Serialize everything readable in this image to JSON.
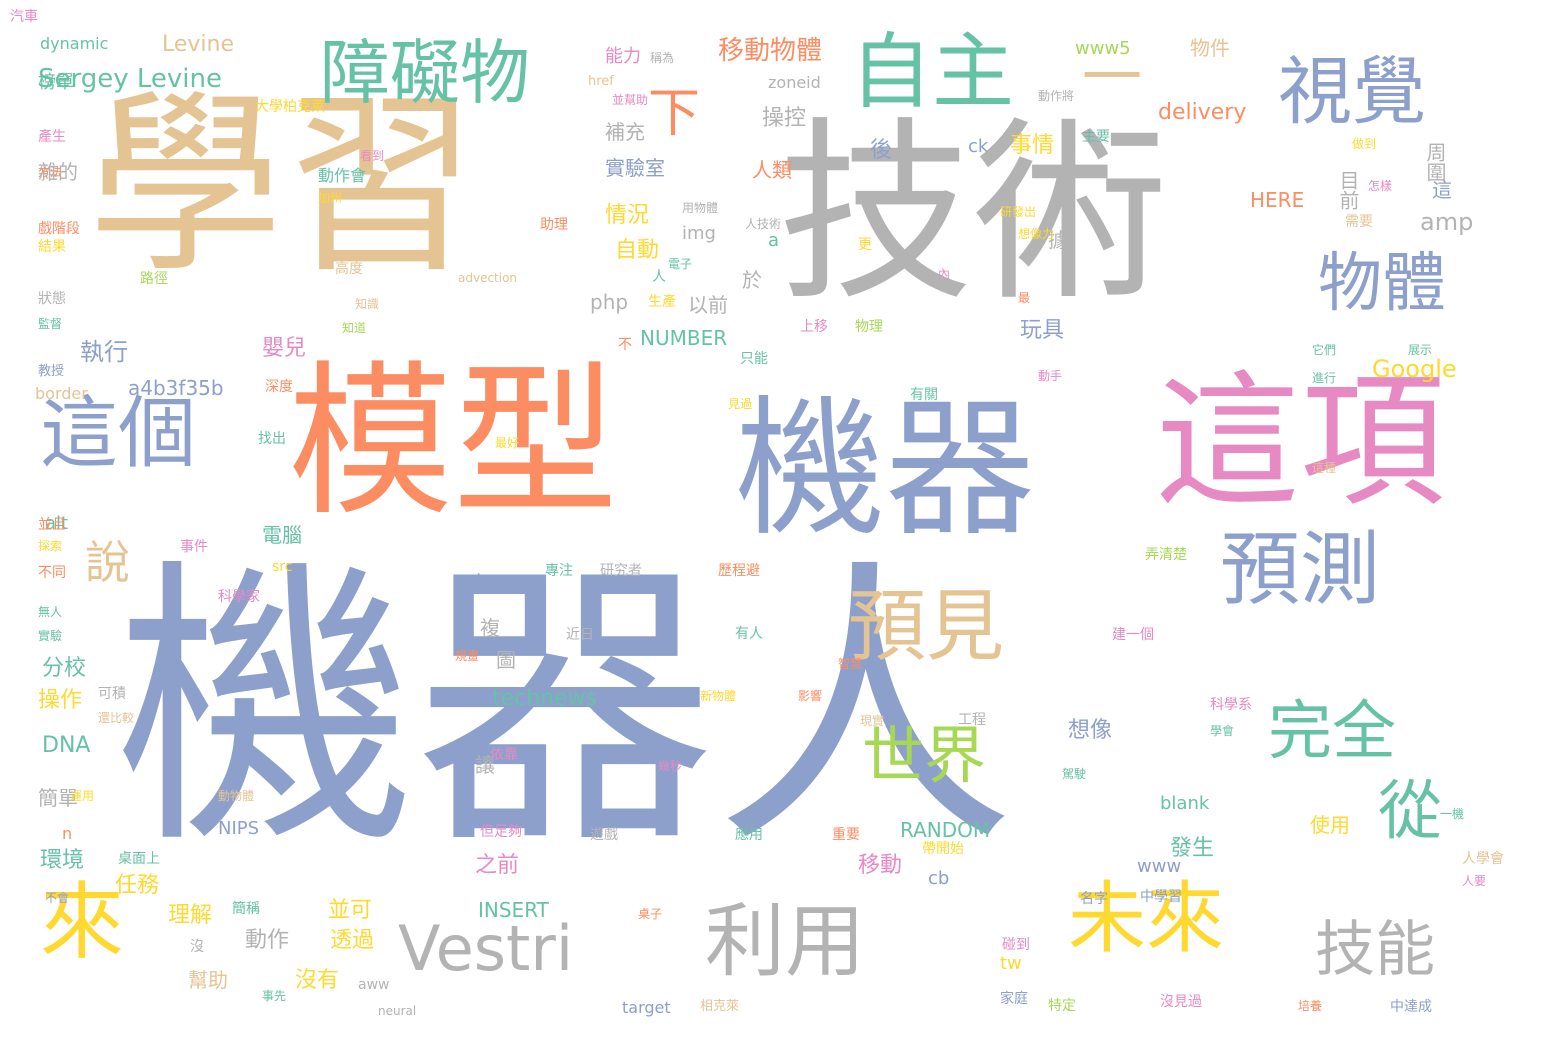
{
  "palette": {
    "blue": "#8da0cb",
    "tan": "#e5c494",
    "grey": "#b3b3b3",
    "orange": "#fc8d62",
    "pink": "#e78ac3",
    "teal": "#66c2a5",
    "yellow": "#ffd92f",
    "green": "#a6d854"
  },
  "words": [
    {
      "text": "機器人",
      "color": "blue",
      "size": "xxl"
    },
    {
      "text": "技術",
      "color": "grey",
      "size": "xl"
    },
    {
      "text": "學習",
      "color": "tan",
      "size": "xl"
    },
    {
      "text": "模型",
      "color": "orange",
      "size": "l"
    },
    {
      "text": "機器",
      "color": "blue",
      "size": "l"
    },
    {
      "text": "這項",
      "color": "pink",
      "size": "l"
    },
    {
      "text": "自主",
      "color": "teal",
      "size": "m"
    },
    {
      "text": "一",
      "color": "tan",
      "size": "m"
    },
    {
      "text": "視覺",
      "color": "blue",
      "size": "m"
    },
    {
      "text": "障礙物",
      "color": "teal",
      "size": "m"
    },
    {
      "text": "物體",
      "color": "blue",
      "size": "m"
    },
    {
      "text": "這個",
      "color": "blue",
      "size": "m"
    },
    {
      "text": "預見",
      "color": "tan",
      "size": "m"
    },
    {
      "text": "預測",
      "color": "blue",
      "size": "m"
    },
    {
      "text": "完全",
      "color": "teal",
      "size": "m"
    },
    {
      "text": "世界",
      "color": "green",
      "size": "m"
    },
    {
      "text": "來",
      "color": "yellow",
      "size": "m"
    },
    {
      "text": "Vestri",
      "color": "grey",
      "size": "m"
    },
    {
      "text": "利用",
      "color": "grey",
      "size": "m"
    },
    {
      "text": "未來",
      "color": "yellow",
      "size": "m"
    },
    {
      "text": "技能",
      "color": "grey",
      "size": "m"
    },
    {
      "text": "從",
      "color": "teal",
      "size": "m"
    },
    {
      "text": "說",
      "color": "tan",
      "size": "s"
    },
    {
      "text": "下",
      "color": "orange",
      "size": "s"
    },
    {
      "text": "Sergey Levine",
      "color": "teal",
      "size": "s"
    },
    {
      "text": "Levine",
      "color": "tan",
      "size": "s"
    },
    {
      "text": "移動物體",
      "color": "orange",
      "size": "s"
    },
    {
      "text": "執行",
      "color": "blue",
      "size": "s"
    },
    {
      "text": "a4b3f35b",
      "color": "blue",
      "size": "s"
    },
    {
      "text": "電腦",
      "color": "teal",
      "size": "s"
    },
    {
      "text": "分校",
      "color": "teal",
      "size": "s"
    },
    {
      "text": "操作",
      "color": "yellow",
      "size": "s"
    },
    {
      "text": "DNA",
      "color": "teal",
      "size": "s"
    },
    {
      "text": "環境",
      "color": "teal",
      "size": "s"
    },
    {
      "text": "任務",
      "color": "yellow",
      "size": "s"
    },
    {
      "text": "理解",
      "color": "yellow",
      "size": "s"
    },
    {
      "text": "動作",
      "color": "grey",
      "size": "s"
    },
    {
      "text": "透過",
      "color": "yellow",
      "size": "s"
    },
    {
      "text": "沒有",
      "color": "yellow",
      "size": "s"
    },
    {
      "text": "並可",
      "color": "yellow",
      "size": "s"
    },
    {
      "text": "technews",
      "color": "teal",
      "size": "s"
    },
    {
      "text": "INSERT",
      "color": "teal",
      "size": "s"
    },
    {
      "text": "RANDOM",
      "color": "teal",
      "size": "s"
    },
    {
      "text": "NUMBER",
      "color": "teal",
      "size": "s"
    },
    {
      "text": "Google",
      "color": "yellow",
      "size": "s"
    },
    {
      "text": "delivery",
      "color": "orange",
      "size": "s"
    },
    {
      "text": "HERE",
      "color": "orange",
      "size": "s"
    },
    {
      "text": "amp",
      "color": "grey",
      "size": "s"
    },
    {
      "text": "www5",
      "color": "green",
      "size": "s"
    },
    {
      "text": "物件",
      "color": "tan",
      "size": "s"
    },
    {
      "text": "能力",
      "color": "pink",
      "size": "s"
    },
    {
      "text": "操控",
      "color": "grey",
      "size": "s"
    },
    {
      "text": "事情",
      "color": "yellow",
      "size": "s"
    },
    {
      "text": "人類",
      "color": "orange",
      "size": "s"
    },
    {
      "text": "實驗室",
      "color": "blue",
      "size": "s"
    },
    {
      "text": "補充",
      "color": "grey",
      "size": "s"
    },
    {
      "text": "情況",
      "color": "yellow",
      "size": "s"
    },
    {
      "text": "自動",
      "color": "yellow",
      "size": "s"
    },
    {
      "text": "以前",
      "color": "grey",
      "size": "s"
    },
    {
      "text": "目前",
      "color": "grey",
      "size": "s"
    },
    {
      "text": "周圍",
      "color": "grey",
      "size": "s"
    },
    {
      "text": "玩具",
      "color": "blue",
      "size": "s"
    },
    {
      "text": "嬰兒",
      "color": "pink",
      "size": "s"
    },
    {
      "text": "了解",
      "color": "blue",
      "size": "s"
    },
    {
      "text": "想像",
      "color": "blue",
      "size": "s"
    },
    {
      "text": "發生",
      "color": "teal",
      "size": "s"
    },
    {
      "text": "使用",
      "color": "yellow",
      "size": "s"
    },
    {
      "text": "移動",
      "color": "pink",
      "size": "s"
    },
    {
      "text": "之前",
      "color": "pink",
      "size": "s"
    },
    {
      "text": "後",
      "color": "blue",
      "size": "s"
    },
    {
      "text": "據",
      "color": "grey",
      "size": "s"
    },
    {
      "text": "於",
      "color": "grey",
      "size": "s"
    },
    {
      "text": "讓",
      "color": "grey",
      "size": "s"
    },
    {
      "text": "複",
      "color": "grey",
      "size": "s"
    },
    {
      "text": "圖",
      "color": "grey",
      "size": "s"
    },
    {
      "text": "這",
      "color": "blue",
      "size": "s"
    },
    {
      "text": "雜的",
      "color": "grey",
      "size": "s"
    },
    {
      "text": "榜單",
      "color": "teal",
      "size": "s"
    },
    {
      "text": "簡單",
      "color": "grey",
      "size": "s"
    },
    {
      "text": "幫助",
      "color": "tan",
      "size": "s"
    },
    {
      "text": "php",
      "color": "grey",
      "size": "s"
    },
    {
      "text": "img",
      "color": "grey",
      "size": "s"
    },
    {
      "text": "ck",
      "color": "blue",
      "size": "s"
    },
    {
      "text": "cb",
      "color": "blue",
      "size": "s"
    },
    {
      "text": "www",
      "color": "blue",
      "size": "s"
    },
    {
      "text": "tw",
      "color": "yellow",
      "size": "s"
    },
    {
      "text": "blank",
      "color": "teal",
      "size": "s"
    },
    {
      "text": "NIPS",
      "color": "blue",
      "size": "s"
    },
    {
      "text": "alt",
      "color": "teal",
      "size": "s"
    },
    {
      "text": "a",
      "color": "teal",
      "size": "s"
    },
    {
      "text": "n",
      "color": "orange",
      "size": "s"
    },
    {
      "text": "border",
      "color": "tan",
      "size": "xs"
    },
    {
      "text": "target",
      "color": "blue",
      "size": "xs"
    },
    {
      "text": "zoneid",
      "color": "grey",
      "size": "xs"
    },
    {
      "text": "href",
      "color": "tan",
      "size": "xs"
    },
    {
      "text": "aww",
      "color": "grey",
      "size": "xs"
    },
    {
      "text": "src",
      "color": "yellow",
      "size": "xs"
    },
    {
      "text": "neural",
      "color": "grey",
      "size": "xs"
    },
    {
      "text": "advection",
      "color": "tan",
      "size": "xs"
    },
    {
      "text": "dynamic",
      "color": "teal",
      "size": "xs"
    },
    {
      "text": "大學柏克萊",
      "color": "yellow",
      "size": "xs"
    },
    {
      "text": "產生",
      "color": "pink",
      "size": "xs"
    },
    {
      "text": "動作會",
      "color": "teal",
      "size": "xs"
    },
    {
      "text": "加州",
      "color": "yellow",
      "size": "xs"
    },
    {
      "text": "方法",
      "color": "orange",
      "size": "xs"
    },
    {
      "text": "戲階段",
      "color": "orange",
      "size": "xs"
    },
    {
      "text": "結果",
      "color": "yellow",
      "size": "xs"
    },
    {
      "text": "路徑",
      "color": "green",
      "size": "xs"
    },
    {
      "text": "狀態",
      "color": "grey",
      "size": "xs"
    },
    {
      "text": "監督",
      "color": "teal",
      "size": "xs"
    },
    {
      "text": "教授",
      "color": "blue",
      "size": "xs"
    },
    {
      "text": "深度",
      "color": "orange",
      "size": "xs"
    },
    {
      "text": "找出",
      "color": "teal",
      "size": "xs"
    },
    {
      "text": "最好",
      "color": "yellow",
      "size": "xs"
    },
    {
      "text": "高度",
      "color": "tan",
      "size": "xs"
    },
    {
      "text": "知道",
      "color": "green",
      "size": "xs"
    },
    {
      "text": "知識",
      "color": "tan",
      "size": "xs"
    },
    {
      "text": "看到",
      "color": "pink",
      "size": "xs"
    },
    {
      "text": "助理",
      "color": "orange",
      "size": "xs"
    },
    {
      "text": "更",
      "color": "yellow",
      "size": "xs"
    },
    {
      "text": "人",
      "color": "teal",
      "size": "xs"
    },
    {
      "text": "不",
      "color": "orange",
      "size": "xs"
    },
    {
      "text": "只能",
      "color": "teal",
      "size": "xs"
    },
    {
      "text": "上移",
      "color": "pink",
      "size": "xs"
    },
    {
      "text": "物理",
      "color": "green",
      "size": "xs"
    },
    {
      "text": "生產",
      "color": "yellow",
      "size": "xs"
    },
    {
      "text": "電子",
      "color": "teal",
      "size": "xs"
    },
    {
      "text": "用物體",
      "color": "grey",
      "size": "xs"
    },
    {
      "text": "人技術",
      "color": "grey",
      "size": "xs"
    },
    {
      "text": "稱為",
      "color": "grey",
      "size": "xs"
    },
    {
      "text": "並幫助",
      "color": "pink",
      "size": "xs"
    },
    {
      "text": "動作將",
      "color": "grey",
      "size": "xs"
    },
    {
      "text": "主要",
      "color": "teal",
      "size": "xs"
    },
    {
      "text": "做到",
      "color": "yellow",
      "size": "xs"
    },
    {
      "text": "怎樣",
      "color": "pink",
      "size": "xs"
    },
    {
      "text": "需要",
      "color": "tan",
      "size": "xs"
    },
    {
      "text": "研發出",
      "color": "yellow",
      "size": "xs"
    },
    {
      "text": "想像力",
      "color": "yellow",
      "size": "xs"
    },
    {
      "text": "內",
      "color": "pink",
      "size": "xs"
    },
    {
      "text": "最",
      "color": "orange",
      "size": "xs"
    },
    {
      "text": "動手",
      "color": "pink",
      "size": "xs"
    },
    {
      "text": "它們",
      "color": "teal",
      "size": "xs"
    },
    {
      "text": "展示",
      "color": "teal",
      "size": "xs"
    },
    {
      "text": "進行",
      "color": "teal",
      "size": "xs"
    },
    {
      "text": "有關",
      "color": "teal",
      "size": "xs"
    },
    {
      "text": "見過",
      "color": "yellow",
      "size": "xs"
    },
    {
      "text": "這種",
      "color": "tan",
      "size": "xs"
    },
    {
      "text": "並且",
      "color": "orange",
      "size": "xs"
    },
    {
      "text": "探索",
      "color": "yellow",
      "size": "xs"
    },
    {
      "text": "不同",
      "color": "orange",
      "size": "xs"
    },
    {
      "text": "無人",
      "color": "teal",
      "size": "xs"
    },
    {
      "text": "實驗",
      "color": "teal",
      "size": "xs"
    },
    {
      "text": "事件",
      "color": "pink",
      "size": "xs"
    },
    {
      "text": "科學家",
      "color": "pink",
      "size": "xs"
    },
    {
      "text": "專注",
      "color": "teal",
      "size": "xs"
    },
    {
      "text": "研究者",
      "color": "grey",
      "size": "xs"
    },
    {
      "text": "歷程避",
      "color": "orange",
      "size": "xs"
    },
    {
      "text": "弄清楚",
      "color": "green",
      "size": "xs"
    },
    {
      "text": "近日",
      "color": "grey",
      "size": "xs"
    },
    {
      "text": "有人",
      "color": "teal",
      "size": "xs"
    },
    {
      "text": "建一個",
      "color": "pink",
      "size": "xs"
    },
    {
      "text": "規畫",
      "color": "orange",
      "size": "xs"
    },
    {
      "text": "智慧",
      "color": "orange",
      "size": "xs"
    },
    {
      "text": "可積",
      "color": "grey",
      "size": "xs"
    },
    {
      "text": "還比較",
      "color": "tan",
      "size": "xs"
    },
    {
      "text": "新物體",
      "color": "yellow",
      "size": "xs"
    },
    {
      "text": "影響",
      "color": "orange",
      "size": "xs"
    },
    {
      "text": "現實",
      "color": "tan",
      "size": "xs"
    },
    {
      "text": "工程",
      "color": "grey",
      "size": "xs"
    },
    {
      "text": "科學系",
      "color": "pink",
      "size": "xs"
    },
    {
      "text": "學會",
      "color": "teal",
      "size": "xs"
    },
    {
      "text": "依靠",
      "color": "pink",
      "size": "xs"
    },
    {
      "text": "幾秒",
      "color": "pink",
      "size": "xs"
    },
    {
      "text": "駕駛",
      "color": "teal",
      "size": "xs"
    },
    {
      "text": "運用",
      "color": "yellow",
      "size": "xs"
    },
    {
      "text": "動物體",
      "color": "tan",
      "size": "xs"
    },
    {
      "text": "一機",
      "color": "teal",
      "size": "xs"
    },
    {
      "text": "遊戲",
      "color": "grey",
      "size": "xs"
    },
    {
      "text": "應用",
      "color": "teal",
      "size": "xs"
    },
    {
      "text": "重要",
      "color": "orange",
      "size": "xs"
    },
    {
      "text": "但足夠",
      "color": "pink",
      "size": "xs"
    },
    {
      "text": "帶開始",
      "color": "yellow",
      "size": "xs"
    },
    {
      "text": "桌面上",
      "color": "teal",
      "size": "xs"
    },
    {
      "text": "人學會",
      "color": "tan",
      "size": "xs"
    },
    {
      "text": "人要",
      "color": "pink",
      "size": "xs"
    },
    {
      "text": "不會",
      "color": "blue",
      "size": "xs"
    },
    {
      "text": "簡稱",
      "color": "teal",
      "size": "xs"
    },
    {
      "text": "中學習",
      "color": "blue",
      "size": "xs"
    },
    {
      "text": "名字",
      "color": "blue",
      "size": "xs"
    },
    {
      "text": "沒",
      "color": "grey",
      "size": "xs"
    },
    {
      "text": "桌子",
      "color": "orange",
      "size": "xs"
    },
    {
      "text": "碰到",
      "color": "pink",
      "size": "xs"
    },
    {
      "text": "事先",
      "color": "teal",
      "size": "xs"
    },
    {
      "text": "家庭",
      "color": "blue",
      "size": "xs"
    },
    {
      "text": "特定",
      "color": "green",
      "size": "xs"
    },
    {
      "text": "沒見過",
      "color": "pink",
      "size": "xs"
    },
    {
      "text": "培養",
      "color": "orange",
      "size": "xs"
    },
    {
      "text": "相克萊",
      "color": "tan",
      "size": "xs"
    },
    {
      "text": "中達成",
      "color": "blue",
      "size": "xs"
    },
    {
      "text": "汽車",
      "color": "pink",
      "size": "xs"
    }
  ]
}
